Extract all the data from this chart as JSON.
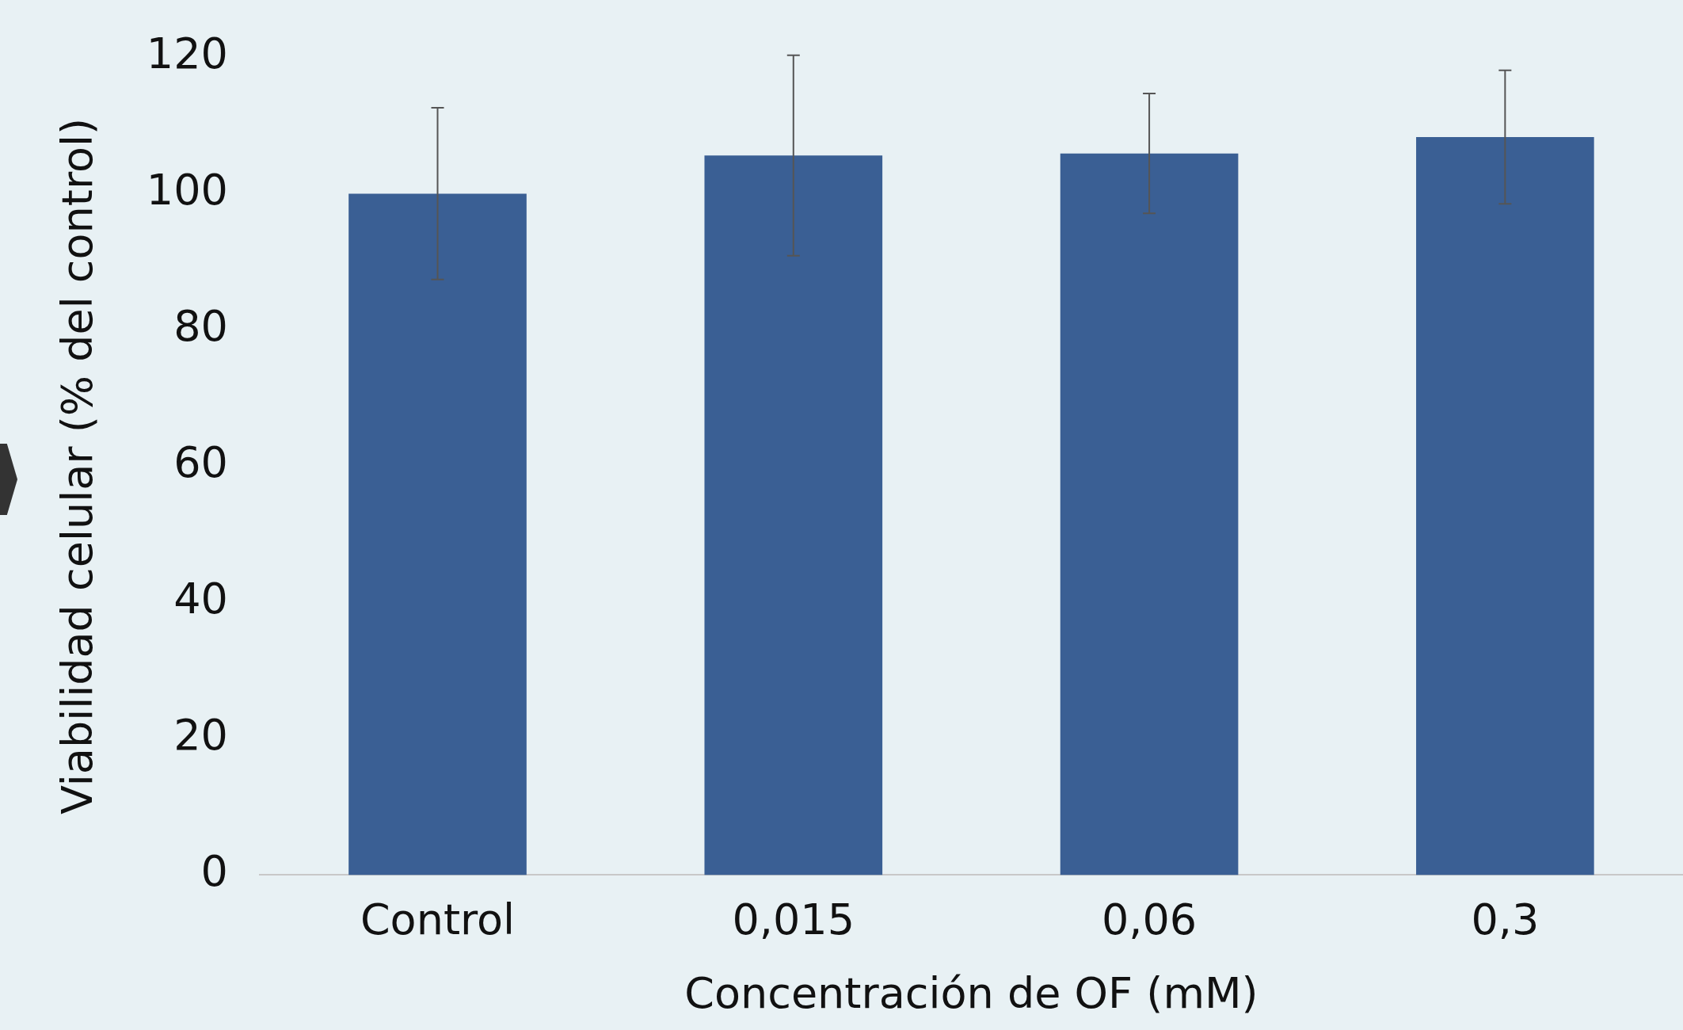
{
  "chart_data": {
    "type": "bar",
    "xlabel": "Concentración de OF (mM)",
    "ylabel": "Viabilidad celular (% del control)",
    "categories": [
      "Control",
      "0,015",
      "0,06",
      "0,3"
    ],
    "values": [
      100,
      105.6,
      105.9,
      108.3
    ],
    "errors": [
      12.6,
      14.7,
      8.8,
      9.8
    ],
    "color": "#3a5f94",
    "ylim": [
      0,
      120
    ],
    "yticks": [
      0,
      20,
      40,
      60,
      80,
      100,
      120
    ],
    "grid": false,
    "legend": false
  }
}
